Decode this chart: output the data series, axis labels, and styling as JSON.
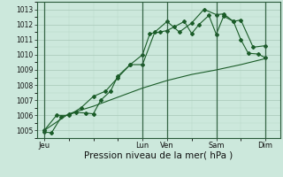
{
  "xlabel": "Pression niveau de la mer( hPa )",
  "bg_color": "#cce8dc",
  "line_color": "#1a5c28",
  "grid_major_color": "#a8c8b8",
  "grid_minor_color": "#b8d8c8",
  "ylim": [
    1004.5,
    1013.5
  ],
  "yticks": [
    1005,
    1006,
    1007,
    1008,
    1009,
    1010,
    1011,
    1012,
    1013
  ],
  "xtick_positions": [
    0,
    4.0,
    5.0,
    7.0,
    9.0
  ],
  "xtick_labels": [
    "Jeu",
    "Lun",
    "Ven",
    "Sam",
    "Dim"
  ],
  "xlim": [
    -0.3,
    9.6
  ],
  "line1_x": [
    0,
    0.3,
    0.7,
    1.0,
    1.3,
    1.7,
    2.0,
    2.3,
    2.7,
    3.0,
    3.5,
    4.0,
    4.3,
    4.7,
    5.0,
    5.3,
    5.7,
    6.0,
    6.3,
    6.7,
    7.0,
    7.3,
    7.7,
    8.0,
    8.3,
    8.7,
    9.0
  ],
  "line1_y": [
    1004.9,
    1004.85,
    1005.9,
    1006.05,
    1006.2,
    1006.15,
    1006.1,
    1007.0,
    1007.6,
    1008.6,
    1009.35,
    1010.0,
    1011.4,
    1011.5,
    1011.6,
    1011.85,
    1012.2,
    1011.4,
    1012.0,
    1012.6,
    1011.35,
    1012.55,
    1012.2,
    1011.0,
    1010.1,
    1010.05,
    1009.8
  ],
  "line2_x": [
    0,
    0.5,
    1.0,
    1.5,
    2.0,
    2.5,
    3.0,
    3.5,
    4.0,
    4.5,
    5.0,
    5.5,
    6.0,
    6.5,
    7.0,
    7.3,
    7.7,
    8.0,
    8.5,
    9.0
  ],
  "line2_y": [
    1005.0,
    1006.0,
    1006.0,
    1006.5,
    1007.25,
    1007.6,
    1008.5,
    1009.35,
    1009.35,
    1011.5,
    1012.2,
    1011.5,
    1012.1,
    1013.0,
    1012.65,
    1012.7,
    1012.2,
    1012.3,
    1010.5,
    1010.6
  ],
  "line3_x": [
    0,
    1.0,
    2.0,
    3.0,
    4.0,
    5.0,
    6.0,
    7.0,
    8.0,
    9.0
  ],
  "line3_y": [
    1005.0,
    1006.1,
    1006.6,
    1007.2,
    1007.8,
    1008.3,
    1008.7,
    1009.0,
    1009.35,
    1009.75
  ],
  "figsize": [
    3.2,
    2.0
  ],
  "dpi": 100,
  "ylabel_fontsize": 5.0,
  "xlabel_fontsize": 7.5,
  "xtick_fontsize": 6.0,
  "ytick_fontsize": 5.5
}
